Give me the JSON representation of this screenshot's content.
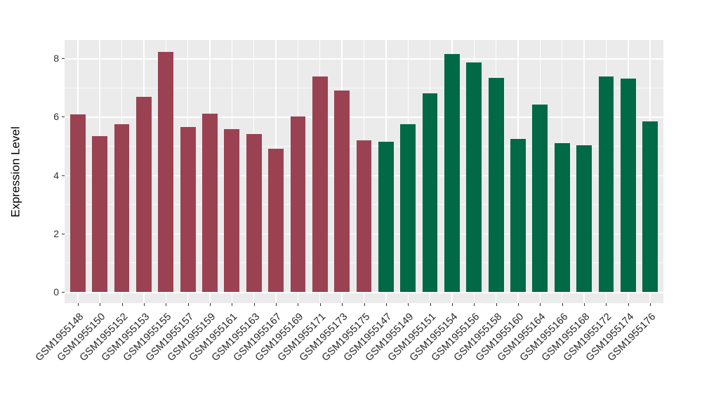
{
  "chart_data": {
    "type": "bar",
    "title": "",
    "xlabel": "",
    "ylabel": "Expression Level",
    "ylim": [
      -0.39,
      8.63
    ],
    "yticks_major": [
      0,
      2,
      4,
      6,
      8
    ],
    "yticks_minor": [
      1,
      3,
      5,
      7
    ],
    "grid": "on",
    "legend": "none",
    "panel_bg": "#EBEBEB",
    "gridline_color": "#FFFFFF",
    "colors": {
      "red_group": "#9B4252",
      "green_group": "#006946"
    },
    "categories": [
      "GSM1955148",
      "GSM1955150",
      "GSM1955152",
      "GSM1955153",
      "GSM1955155",
      "GSM1955157",
      "GSM1955159",
      "GSM1955161",
      "GSM1955163",
      "GSM1955167",
      "GSM1955169",
      "GSM1955171",
      "GSM1955173",
      "GSM1955175",
      "GSM1955147",
      "GSM1955149",
      "GSM1955151",
      "GSM1955154",
      "GSM1955156",
      "GSM1955158",
      "GSM1955160",
      "GSM1955164",
      "GSM1955166",
      "GSM1955168",
      "GSM1955172",
      "GSM1955174",
      "GSM1955176"
    ],
    "values": [
      6.07,
      5.33,
      5.74,
      6.68,
      8.23,
      5.64,
      6.11,
      5.57,
      5.42,
      4.9,
      6.01,
      7.39,
      6.9,
      5.19,
      5.15,
      5.75,
      6.81,
      8.15,
      7.87,
      7.32,
      5.23,
      6.41,
      5.1,
      5.03,
      7.37,
      7.3,
      5.83
    ],
    "color_keys": [
      "red_group",
      "red_group",
      "red_group",
      "red_group",
      "red_group",
      "red_group",
      "red_group",
      "red_group",
      "red_group",
      "red_group",
      "red_group",
      "red_group",
      "red_group",
      "red_group",
      "green_group",
      "green_group",
      "green_group",
      "green_group",
      "green_group",
      "green_group",
      "green_group",
      "green_group",
      "green_group",
      "green_group",
      "green_group",
      "green_group",
      "green_group"
    ]
  }
}
